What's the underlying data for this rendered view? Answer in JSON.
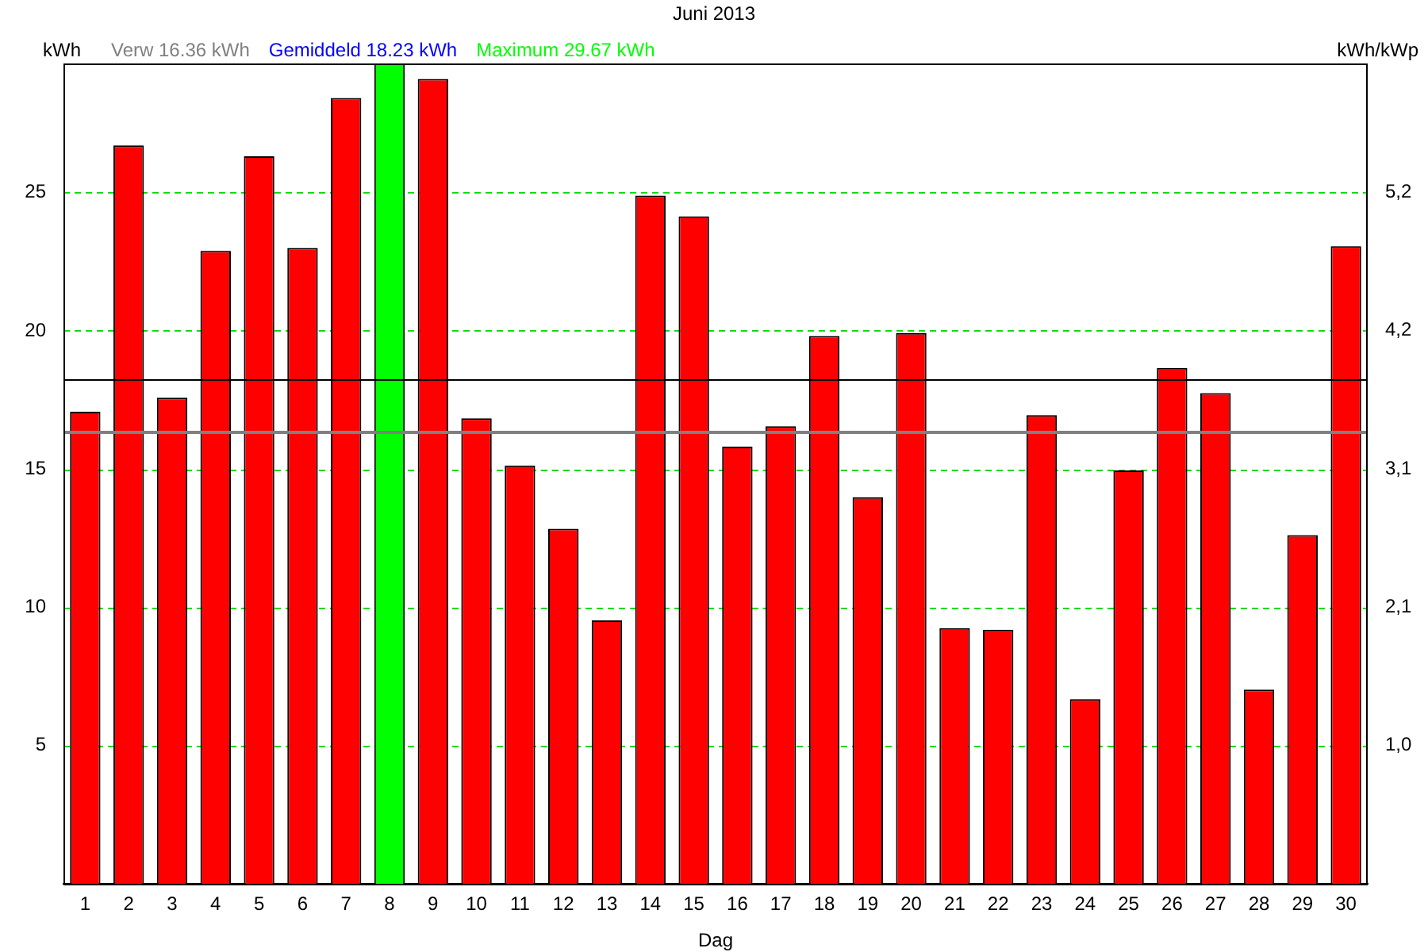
{
  "chart_data": {
    "type": "bar",
    "title": "Juni 2013",
    "xlabel": "Dag",
    "ylabel": "kWh",
    "y2label": "kWh/kWp",
    "categories": [
      "1",
      "2",
      "3",
      "4",
      "5",
      "6",
      "7",
      "8",
      "9",
      "10",
      "11",
      "12",
      "13",
      "14",
      "15",
      "16",
      "17",
      "18",
      "19",
      "20",
      "21",
      "22",
      "23",
      "24",
      "25",
      "26",
      "27",
      "28",
      "29",
      "30"
    ],
    "values": [
      17.07,
      26.71,
      17.58,
      22.89,
      26.31,
      23.0,
      28.42,
      29.67,
      29.11,
      16.84,
      15.13,
      12.84,
      9.53,
      24.89,
      24.14,
      15.81,
      16.55,
      19.81,
      13.98,
      19.92,
      9.25,
      9.19,
      16.95,
      6.68,
      14.95,
      18.66,
      17.75,
      7.02,
      12.61,
      23.06
    ],
    "colors": [
      "#ff0000",
      "#ff0000",
      "#ff0000",
      "#ff0000",
      "#ff0000",
      "#ff0000",
      "#ff0000",
      "#00ff00",
      "#ff0000",
      "#ff0000",
      "#ff0000",
      "#ff0000",
      "#ff0000",
      "#ff0000",
      "#ff0000",
      "#ff0000",
      "#ff0000",
      "#ff0000",
      "#ff0000",
      "#ff0000",
      "#ff0000",
      "#ff0000",
      "#ff0000",
      "#ff0000",
      "#ff0000",
      "#ff0000",
      "#ff0000",
      "#ff0000",
      "#ff0000",
      "#ff0000"
    ],
    "ylim": [
      0,
      29.67
    ],
    "yticks": [
      5,
      10,
      15,
      20,
      25
    ],
    "y2lim": [
      0,
      6.18
    ],
    "y2ticks": [
      {
        "value": 1.042,
        "label": "1,0"
      },
      {
        "value": 2.083,
        "label": "2,1"
      },
      {
        "value": 3.125,
        "label": "3,1"
      },
      {
        "value": 4.167,
        "label": "4,2"
      },
      {
        "value": 5.208,
        "label": "5,2"
      }
    ],
    "grid": "y",
    "ref_lines": [
      {
        "axis": "y",
        "value": 16.36,
        "color": "#808080"
      },
      {
        "axis": "y",
        "value": 18.23,
        "color": "#000000"
      }
    ],
    "annotations": [
      "Verw 16.36 kWh",
      "Gemiddeld 18.23 kWh",
      "Maximum 29.67 kWh"
    ]
  }
}
